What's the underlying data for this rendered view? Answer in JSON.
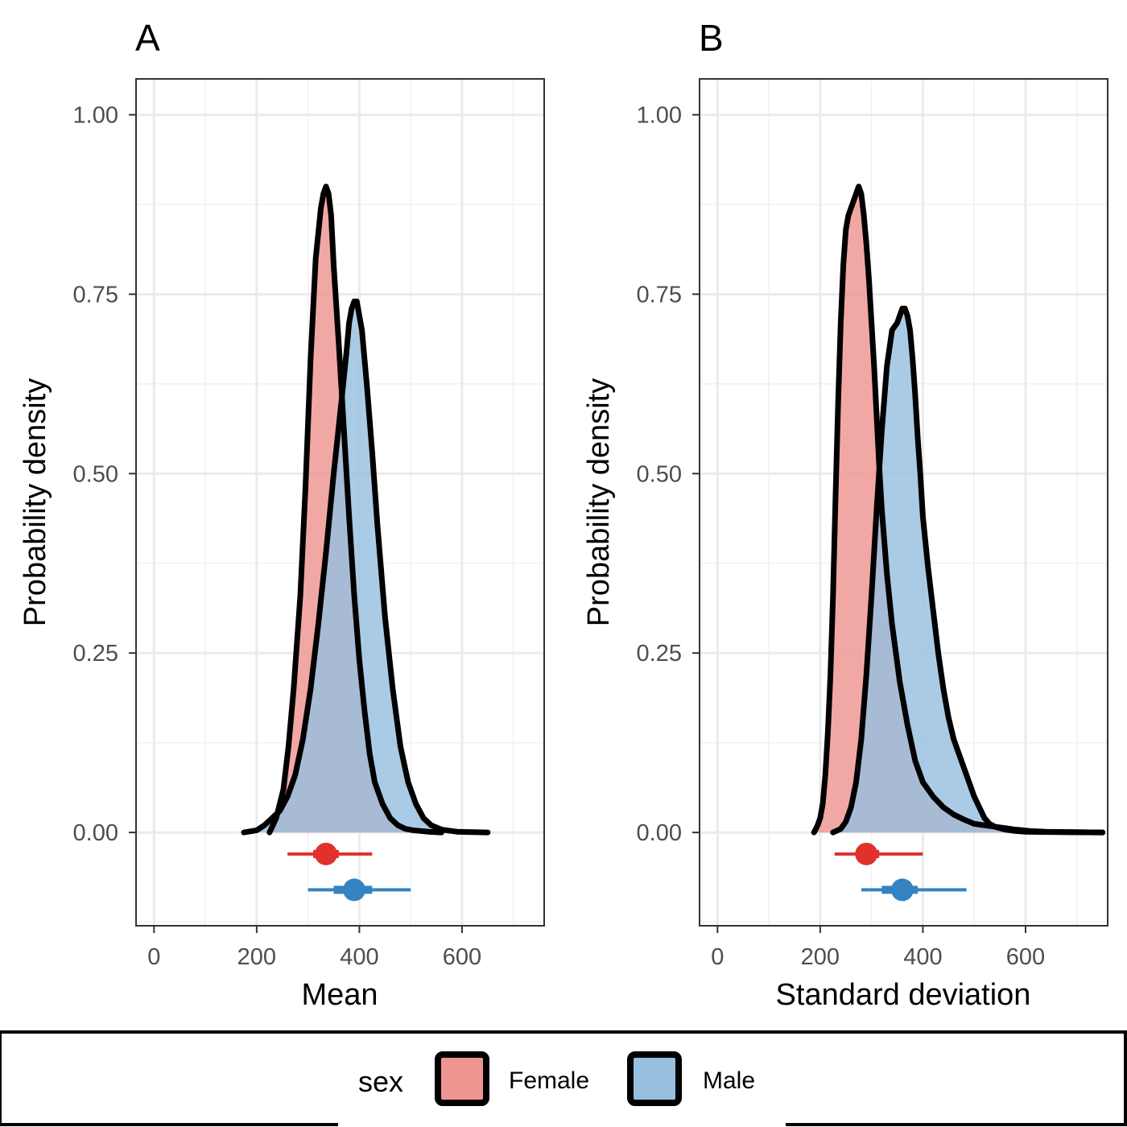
{
  "legend": {
    "title": "sex",
    "entries": [
      {
        "label": "Female",
        "fill": "#ee9591",
        "dot": "#e0312b"
      },
      {
        "label": "Male",
        "fill": "#97bfdf",
        "dot": "#3583c0"
      }
    ],
    "overlap_fill": "#b8737a",
    "outline": "#000000"
  },
  "chart_data": [
    {
      "type": "area",
      "panel_tag": "A",
      "xlabel": "Mean",
      "ylabel": "Probability density",
      "xlim": [
        -35,
        760
      ],
      "ylim": [
        -0.13,
        1.05
      ],
      "xticks": [
        0,
        200,
        400,
        600
      ],
      "xtick_labels": [
        "0",
        "200",
        "400",
        "600"
      ],
      "yticks": [
        0,
        0.25,
        0.5,
        0.75,
        1.0
      ],
      "ytick_labels": [
        "0.00",
        "0.25",
        "0.50",
        "0.75",
        "1.00"
      ],
      "grid": true,
      "series": [
        {
          "name": "Female",
          "x": [
            225,
            238,
            252,
            262,
            272,
            285,
            295,
            305,
            315,
            325,
            330,
            335,
            340,
            345,
            350,
            360,
            370,
            380,
            390,
            400,
            410,
            420,
            430,
            445,
            460,
            475,
            490,
            505,
            520,
            535,
            560
          ],
          "density": [
            0.0,
            0.02,
            0.06,
            0.12,
            0.2,
            0.33,
            0.48,
            0.66,
            0.8,
            0.87,
            0.89,
            0.9,
            0.89,
            0.86,
            0.79,
            0.68,
            0.56,
            0.44,
            0.33,
            0.24,
            0.17,
            0.11,
            0.07,
            0.04,
            0.02,
            0.01,
            0.005,
            0.003,
            0.002,
            0.001,
            0.0
          ],
          "interval": {
            "point": 335,
            "inner": [
              310,
              360
            ],
            "outer": [
              260,
              425
            ],
            "y": -0.03
          }
        },
        {
          "name": "Male",
          "x": [
            175,
            200,
            215,
            230,
            245,
            260,
            275,
            290,
            305,
            320,
            335,
            350,
            365,
            375,
            380,
            385,
            390,
            395,
            400,
            405,
            415,
            425,
            435,
            450,
            465,
            480,
            495,
            510,
            525,
            540,
            560,
            590,
            650
          ],
          "density": [
            0.0,
            0.003,
            0.01,
            0.02,
            0.03,
            0.05,
            0.08,
            0.13,
            0.2,
            0.29,
            0.39,
            0.5,
            0.6,
            0.67,
            0.71,
            0.73,
            0.74,
            0.74,
            0.72,
            0.7,
            0.62,
            0.53,
            0.43,
            0.3,
            0.2,
            0.12,
            0.07,
            0.04,
            0.02,
            0.01,
            0.004,
            0.001,
            0.0
          ],
          "interval": {
            "point": 390,
            "inner": [
              350,
              425
            ],
            "outer": [
              300,
              500
            ],
            "y": -0.08
          }
        }
      ]
    },
    {
      "type": "area",
      "panel_tag": "B",
      "xlabel": "Standard deviation",
      "ylabel": "Probability density",
      "xlim": [
        -35,
        760
      ],
      "ylim": [
        -0.13,
        1.05
      ],
      "xticks": [
        0,
        200,
        400,
        600
      ],
      "xtick_labels": [
        "0",
        "200",
        "400",
        "600"
      ],
      "yticks": [
        0,
        0.25,
        0.5,
        0.75,
        1.0
      ],
      "ytick_labels": [
        "0.00",
        "0.25",
        "0.50",
        "0.75",
        "1.00"
      ],
      "grid": true,
      "series": [
        {
          "name": "Female",
          "x": [
            188,
            195,
            200,
            205,
            210,
            215,
            220,
            225,
            230,
            235,
            240,
            245,
            250,
            255,
            260,
            265,
            270,
            275,
            280,
            285,
            290,
            295,
            300,
            305,
            310,
            315,
            320,
            330,
            340,
            355,
            370,
            385,
            400,
            420,
            440,
            460,
            480,
            500,
            520,
            540,
            560,
            580,
            600,
            650,
            750
          ],
          "density": [
            0.0,
            0.01,
            0.02,
            0.04,
            0.08,
            0.14,
            0.22,
            0.33,
            0.47,
            0.6,
            0.71,
            0.79,
            0.84,
            0.86,
            0.87,
            0.88,
            0.89,
            0.9,
            0.89,
            0.86,
            0.82,
            0.77,
            0.71,
            0.65,
            0.58,
            0.51,
            0.45,
            0.36,
            0.29,
            0.21,
            0.15,
            0.1,
            0.07,
            0.05,
            0.035,
            0.025,
            0.018,
            0.012,
            0.01,
            0.008,
            0.004,
            0.002,
            0.001,
            0.0005,
            0.0
          ],
          "interval": {
            "point": 290,
            "inner": [
              270,
              315
            ],
            "outer": [
              228,
              400
            ],
            "y": -0.03
          }
        },
        {
          "name": "Male",
          "x": [
            225,
            240,
            250,
            260,
            270,
            280,
            290,
            300,
            310,
            320,
            330,
            340,
            350,
            355,
            360,
            365,
            370,
            375,
            380,
            385,
            390,
            395,
            400,
            410,
            420,
            430,
            440,
            450,
            460,
            470,
            480,
            490,
            500,
            510,
            520,
            530,
            540,
            560,
            580,
            610,
            640,
            680,
            750
          ],
          "density": [
            0.0,
            0.005,
            0.015,
            0.035,
            0.07,
            0.13,
            0.22,
            0.33,
            0.45,
            0.56,
            0.65,
            0.7,
            0.71,
            0.72,
            0.73,
            0.73,
            0.72,
            0.7,
            0.66,
            0.61,
            0.55,
            0.5,
            0.44,
            0.37,
            0.31,
            0.25,
            0.2,
            0.16,
            0.13,
            0.11,
            0.09,
            0.07,
            0.05,
            0.035,
            0.02,
            0.012,
            0.008,
            0.006,
            0.004,
            0.002,
            0.001,
            0.0005,
            0.0
          ],
          "interval": {
            "point": 360,
            "inner": [
              320,
              390
            ],
            "outer": [
              280,
              485
            ],
            "y": -0.08
          }
        }
      ]
    }
  ]
}
